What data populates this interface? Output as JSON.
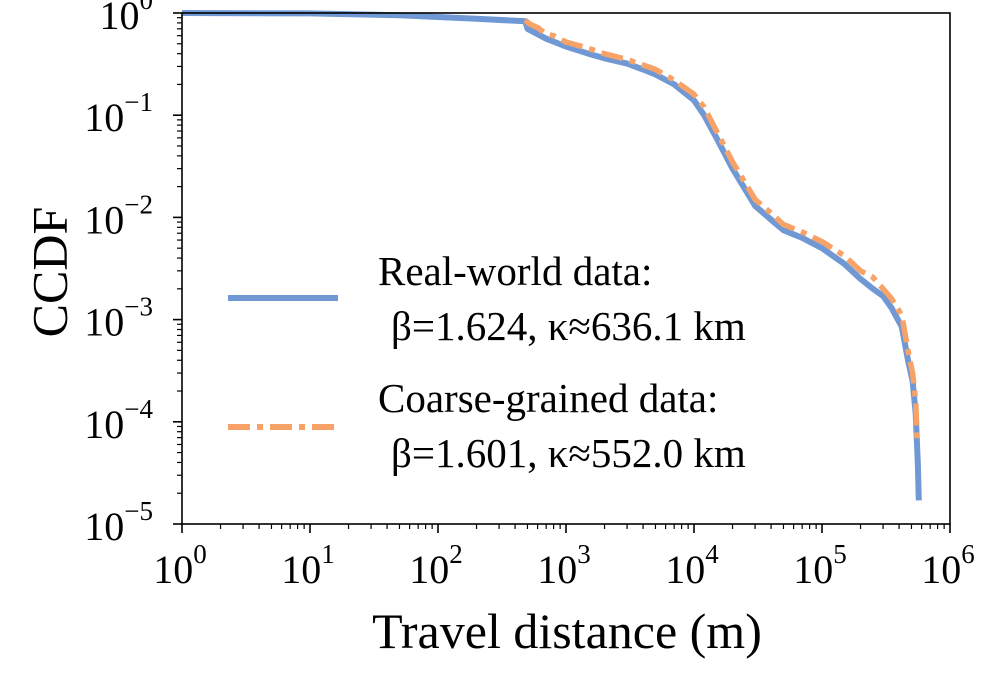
{
  "chart_data": {
    "type": "line",
    "xscale": "log",
    "yscale": "log",
    "xlim": [
      1,
      1000000
    ],
    "ylim": [
      1e-05,
      1
    ],
    "xlabel": "Travel distance (m)",
    "ylabel": "CCDF",
    "x_ticks": [
      {
        "base": "10",
        "exp": "0"
      },
      {
        "base": "10",
        "exp": "1"
      },
      {
        "base": "10",
        "exp": "2"
      },
      {
        "base": "10",
        "exp": "3"
      },
      {
        "base": "10",
        "exp": "4"
      },
      {
        "base": "10",
        "exp": "5"
      },
      {
        "base": "10",
        "exp": "6"
      }
    ],
    "y_ticks": [
      {
        "base": "10",
        "exp": "0"
      },
      {
        "base": "10",
        "exp": "−1"
      },
      {
        "base": "10",
        "exp": "−2"
      },
      {
        "base": "10",
        "exp": "−3"
      },
      {
        "base": "10",
        "exp": "−4"
      },
      {
        "base": "10",
        "exp": "−5"
      }
    ],
    "legend_position": "lower-left",
    "series": [
      {
        "name": "Real-world data:",
        "params": "β=1.624, κ≈636.1 km",
        "color": "#6f98d4",
        "style": "solid",
        "points": [
          [
            1,
            1.0
          ],
          [
            10,
            0.99
          ],
          [
            50,
            0.95
          ],
          [
            200,
            0.88
          ],
          [
            480,
            0.83
          ],
          [
            500,
            0.7
          ],
          [
            700,
            0.56
          ],
          [
            1000,
            0.47
          ],
          [
            1500,
            0.4
          ],
          [
            2000,
            0.36
          ],
          [
            3000,
            0.32
          ],
          [
            4000,
            0.28
          ],
          [
            5000,
            0.25
          ],
          [
            7000,
            0.2
          ],
          [
            10000,
            0.14
          ],
          [
            12000,
            0.1
          ],
          [
            15000,
            0.06
          ],
          [
            20000,
            0.03
          ],
          [
            25000,
            0.019
          ],
          [
            30000,
            0.013
          ],
          [
            40000,
            0.0095
          ],
          [
            50000,
            0.0075
          ],
          [
            70000,
            0.0063
          ],
          [
            100000,
            0.005
          ],
          [
            150000,
            0.0035
          ],
          [
            200000,
            0.0025
          ],
          [
            250000,
            0.002
          ],
          [
            300000,
            0.0017
          ],
          [
            350000,
            0.0013
          ],
          [
            420000,
            0.00085
          ],
          [
            470000,
            0.0004
          ],
          [
            510000,
            0.00025
          ],
          [
            540000,
            0.00012
          ],
          [
            560000,
            4e-05
          ],
          [
            570000,
            1.7e-05
          ]
        ]
      },
      {
        "name": "Coarse-grained data:",
        "params": "β=1.601, κ≈552.0 km",
        "color": "#f7a267",
        "style": "dashdot",
        "points": [
          [
            480,
            0.85
          ],
          [
            520,
            0.78
          ],
          [
            600,
            0.72
          ],
          [
            700,
            0.62
          ],
          [
            800,
            0.6
          ],
          [
            1000,
            0.52
          ],
          [
            1500,
            0.45
          ],
          [
            2000,
            0.4
          ],
          [
            3000,
            0.35
          ],
          [
            4000,
            0.31
          ],
          [
            5000,
            0.28
          ],
          [
            7000,
            0.22
          ],
          [
            10000,
            0.16
          ],
          [
            12000,
            0.12
          ],
          [
            15000,
            0.07
          ],
          [
            20000,
            0.035
          ],
          [
            25000,
            0.022
          ],
          [
            30000,
            0.015
          ],
          [
            40000,
            0.011
          ],
          [
            50000,
            0.0085
          ],
          [
            70000,
            0.0072
          ],
          [
            100000,
            0.0058
          ],
          [
            150000,
            0.0042
          ],
          [
            200000,
            0.003
          ],
          [
            250000,
            0.0026
          ],
          [
            300000,
            0.002
          ],
          [
            350000,
            0.0016
          ],
          [
            420000,
            0.0011
          ],
          [
            470000,
            0.0005
          ],
          [
            510000,
            0.0003
          ],
          [
            540000,
            0.00016
          ],
          [
            555000,
            6e-05
          ]
        ]
      }
    ]
  }
}
